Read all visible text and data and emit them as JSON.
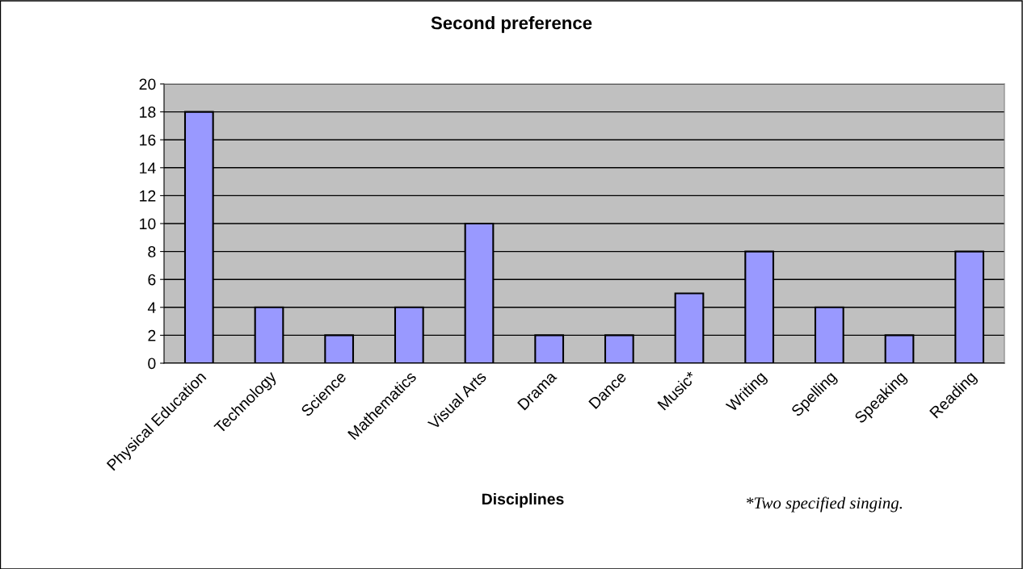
{
  "chart_data": {
    "type": "bar",
    "title": "Second preference",
    "xlabel": "Disciplines",
    "categories": [
      "Physical Education",
      "Technology",
      "Science",
      "Mathematics",
      "Visual Arts",
      "Drama",
      "Dance",
      "Music*",
      "Writing",
      "Spelling",
      "Speaking",
      "Reading"
    ],
    "values": [
      18,
      4,
      2,
      4,
      10,
      2,
      2,
      5,
      8,
      4,
      2,
      8
    ],
    "color": "#9999ff",
    "ylim": [
      0,
      20
    ],
    "yticks": [
      0,
      2,
      4,
      6,
      8,
      10,
      12,
      14,
      16,
      18,
      20
    ],
    "grid": "y",
    "annotations": [
      "*Two specified singing."
    ]
  }
}
